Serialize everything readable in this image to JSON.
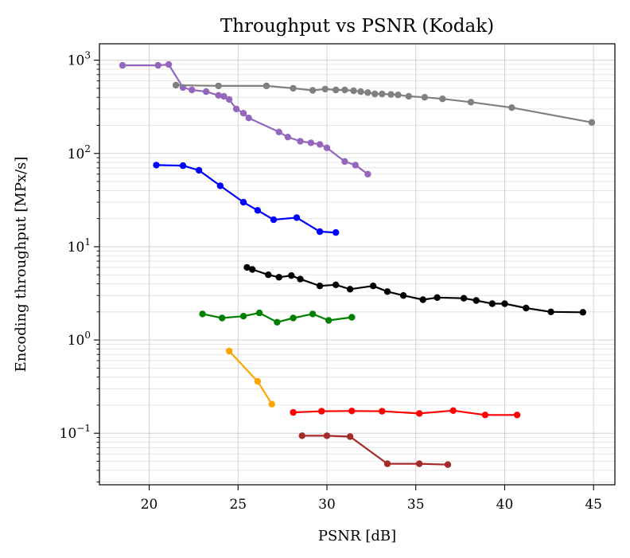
{
  "chart_data": {
    "type": "line",
    "title": "Throughput vs PSNR (Kodak)",
    "xlabel": "PSNR [dB]",
    "ylabel": "Encoding throughput [MPx/s]",
    "xlim": [
      17.2,
      46.2
    ],
    "ylim": [
      0.028,
      1500
    ],
    "yscale": "log",
    "grid": true,
    "x_ticks": [
      20,
      25,
      30,
      35,
      40,
      45
    ],
    "y_ticks": [
      {
        "value": 0.1,
        "base": "10",
        "exp": "−1"
      },
      {
        "value": 1,
        "base": "10",
        "exp": "0"
      },
      {
        "value": 10,
        "base": "10",
        "exp": "1"
      },
      {
        "value": 100,
        "base": "10",
        "exp": "2"
      },
      {
        "value": 1000,
        "base": "10",
        "exp": "3"
      }
    ],
    "series": [
      {
        "color": "#9467bd",
        "points": [
          [
            18.5,
            880
          ],
          [
            20.5,
            880
          ],
          [
            21.1,
            900
          ],
          [
            21.9,
            510
          ],
          [
            22.4,
            480
          ],
          [
            23.2,
            460
          ],
          [
            23.9,
            420
          ],
          [
            24.2,
            410
          ],
          [
            24.5,
            380
          ],
          [
            24.9,
            300
          ],
          [
            25.3,
            270
          ],
          [
            25.6,
            240
          ],
          [
            27.3,
            170
          ],
          [
            27.8,
            150
          ],
          [
            28.5,
            135
          ],
          [
            29.1,
            130
          ],
          [
            29.6,
            125
          ],
          [
            30.0,
            115
          ],
          [
            31.0,
            82
          ],
          [
            31.6,
            75
          ],
          [
            32.3,
            60
          ]
        ]
      },
      {
        "color": "#808080",
        "points": [
          [
            21.5,
            540
          ],
          [
            23.9,
            530
          ],
          [
            26.6,
            530
          ],
          [
            28.1,
            500
          ],
          [
            29.2,
            475
          ],
          [
            29.9,
            490
          ],
          [
            30.5,
            480
          ],
          [
            31.0,
            480
          ],
          [
            31.5,
            470
          ],
          [
            31.9,
            460
          ],
          [
            32.3,
            450
          ],
          [
            32.7,
            435
          ],
          [
            33.1,
            435
          ],
          [
            33.6,
            430
          ],
          [
            34.0,
            425
          ],
          [
            34.6,
            410
          ],
          [
            35.5,
            400
          ],
          [
            36.5,
            385
          ],
          [
            38.1,
            355
          ],
          [
            40.4,
            310
          ],
          [
            44.9,
            215
          ]
        ]
      },
      {
        "color": "#0000ff",
        "points": [
          [
            20.4,
            75
          ],
          [
            21.9,
            74
          ],
          [
            22.8,
            66
          ],
          [
            24.0,
            45
          ],
          [
            25.3,
            30
          ],
          [
            26.1,
            24.5
          ],
          [
            27.0,
            19.5
          ],
          [
            28.3,
            20.5
          ],
          [
            29.6,
            14.5
          ],
          [
            30.5,
            14.2
          ]
        ]
      },
      {
        "color": "#000000",
        "points": [
          [
            25.5,
            6.0
          ],
          [
            25.8,
            5.7
          ],
          [
            26.7,
            5.0
          ],
          [
            27.3,
            4.7
          ],
          [
            28.0,
            4.9
          ],
          [
            28.5,
            4.5
          ],
          [
            29.6,
            3.8
          ],
          [
            30.5,
            3.9
          ],
          [
            31.3,
            3.5
          ],
          [
            32.6,
            3.8
          ],
          [
            33.4,
            3.3
          ],
          [
            34.3,
            3.0
          ],
          [
            35.4,
            2.7
          ],
          [
            36.2,
            2.85
          ],
          [
            37.7,
            2.8
          ],
          [
            38.4,
            2.65
          ],
          [
            39.3,
            2.45
          ],
          [
            40.0,
            2.45
          ],
          [
            41.2,
            2.2
          ],
          [
            42.6,
            2.0
          ],
          [
            44.4,
            1.98
          ]
        ]
      },
      {
        "color": "#008000",
        "points": [
          [
            23.0,
            1.9
          ],
          [
            24.1,
            1.72
          ],
          [
            25.3,
            1.8
          ],
          [
            26.2,
            1.95
          ],
          [
            27.2,
            1.55
          ],
          [
            28.1,
            1.72
          ],
          [
            29.2,
            1.9
          ],
          [
            30.1,
            1.62
          ],
          [
            31.4,
            1.75
          ]
        ]
      },
      {
        "color": "#ffa500",
        "points": [
          [
            24.5,
            0.76
          ],
          [
            26.1,
            0.36
          ],
          [
            26.9,
            0.205
          ]
        ]
      },
      {
        "color": "#ff0000",
        "points": [
          [
            28.1,
            0.167
          ],
          [
            29.7,
            0.172
          ],
          [
            31.4,
            0.173
          ],
          [
            33.1,
            0.172
          ],
          [
            35.2,
            0.163
          ],
          [
            37.1,
            0.175
          ],
          [
            38.9,
            0.157
          ],
          [
            40.7,
            0.157
          ]
        ]
      },
      {
        "color": "#a52a2a",
        "points": [
          [
            28.6,
            0.094
          ],
          [
            30.0,
            0.094
          ],
          [
            31.3,
            0.092
          ],
          [
            33.4,
            0.047
          ],
          [
            35.2,
            0.047
          ],
          [
            36.8,
            0.046
          ]
        ]
      }
    ]
  }
}
